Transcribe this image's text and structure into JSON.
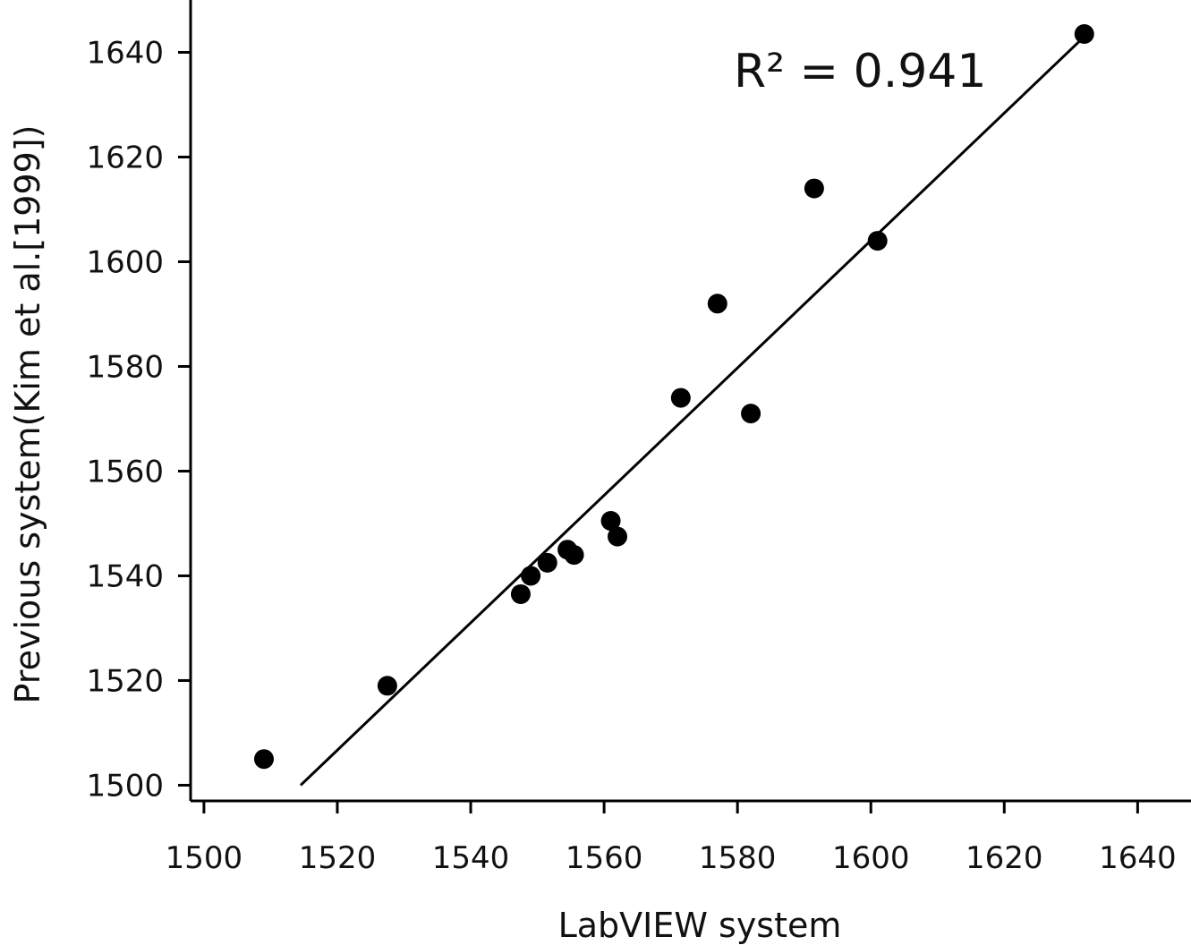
{
  "chart_data": {
    "type": "scatter",
    "xlabel": "LabVIEW system",
    "ylabel": "Previous system(Kim et al.[1999])",
    "xlim": [
      1498,
      1648
    ],
    "ylim": [
      1497,
      1650
    ],
    "xticks": [
      1500,
      1520,
      1540,
      1560,
      1580,
      1600,
      1620,
      1640
    ],
    "yticks": [
      1500,
      1520,
      1540,
      1560,
      1580,
      1600,
      1620,
      1640
    ],
    "grid": false,
    "annotation": "R² = 0.941",
    "points": [
      {
        "x": 1509,
        "y": 1505
      },
      {
        "x": 1527.5,
        "y": 1519
      },
      {
        "x": 1547.5,
        "y": 1536.5
      },
      {
        "x": 1549,
        "y": 1540
      },
      {
        "x": 1551.5,
        "y": 1542.5
      },
      {
        "x": 1554.5,
        "y": 1545
      },
      {
        "x": 1555.5,
        "y": 1544
      },
      {
        "x": 1561,
        "y": 1550.5
      },
      {
        "x": 1562,
        "y": 1547.5
      },
      {
        "x": 1571.5,
        "y": 1574
      },
      {
        "x": 1577,
        "y": 1592
      },
      {
        "x": 1582,
        "y": 1571
      },
      {
        "x": 1591.5,
        "y": 1614
      },
      {
        "x": 1601,
        "y": 1604
      },
      {
        "x": 1632,
        "y": 1643.5
      }
    ],
    "fit_line": {
      "x": [
        1514.5,
        1632
      ],
      "y": [
        1500,
        1643
      ]
    }
  }
}
